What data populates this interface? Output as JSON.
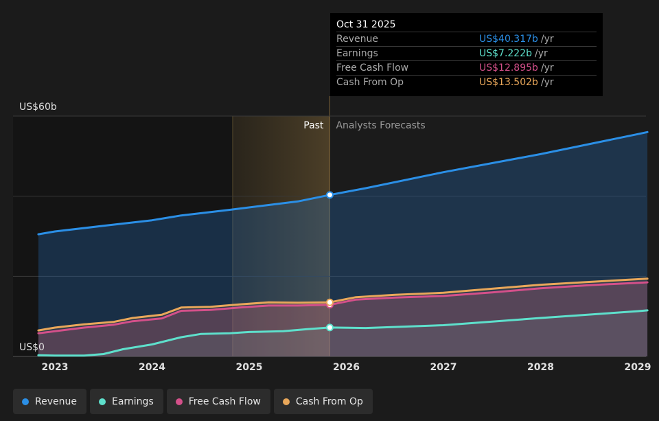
{
  "chart_data": {
    "type": "area",
    "y_top_label": "US$60b",
    "y_bottom_label": "US$0",
    "ylim": [
      0,
      60
    ],
    "x_ticks": [
      "2023",
      "2024",
      "2025",
      "2026",
      "2027",
      "2028",
      "2029"
    ],
    "past_label": "Past",
    "forecast_label": "Analysts Forecasts",
    "divider_date": 2025.83,
    "series": [
      {
        "name": "Revenue",
        "color": "#2b8fe6",
        "points": [
          [
            2022.83,
            30.5
          ],
          [
            2023.0,
            31.2
          ],
          [
            2023.5,
            32.6
          ],
          [
            2024.0,
            34.0
          ],
          [
            2024.3,
            35.2
          ],
          [
            2024.8,
            36.6
          ],
          [
            2025.2,
            37.8
          ],
          [
            2025.5,
            38.7
          ],
          [
            2025.83,
            40.317
          ],
          [
            2026.2,
            42.0
          ],
          [
            2027.0,
            46.0
          ],
          [
            2028.0,
            50.5
          ],
          [
            2029.0,
            55.5
          ],
          [
            2029.1,
            56.0
          ]
        ]
      },
      {
        "name": "Earnings",
        "color": "#5ee0cc",
        "points": [
          [
            2022.83,
            0.3
          ],
          [
            2023.0,
            0.2
          ],
          [
            2023.3,
            0.2
          ],
          [
            2023.5,
            0.6
          ],
          [
            2023.7,
            1.8
          ],
          [
            2024.0,
            3.0
          ],
          [
            2024.3,
            4.8
          ],
          [
            2024.5,
            5.6
          ],
          [
            2024.8,
            5.8
          ],
          [
            2025.0,
            6.1
          ],
          [
            2025.35,
            6.3
          ],
          [
            2025.6,
            6.8
          ],
          [
            2025.83,
            7.222
          ],
          [
            2026.2,
            7.1
          ],
          [
            2027.0,
            7.8
          ],
          [
            2028.0,
            9.6
          ],
          [
            2029.0,
            11.3
          ],
          [
            2029.1,
            11.5
          ]
        ]
      },
      {
        "name": "Free Cash Flow",
        "color": "#d4508a",
        "points": [
          [
            2022.83,
            5.8
          ],
          [
            2023.0,
            6.3
          ],
          [
            2023.3,
            7.2
          ],
          [
            2023.6,
            7.9
          ],
          [
            2023.8,
            8.8
          ],
          [
            2024.1,
            9.5
          ],
          [
            2024.3,
            11.4
          ],
          [
            2024.6,
            11.6
          ],
          [
            2024.9,
            12.2
          ],
          [
            2025.2,
            12.7
          ],
          [
            2025.5,
            12.7
          ],
          [
            2025.83,
            12.895
          ],
          [
            2026.1,
            14.2
          ],
          [
            2026.5,
            14.7
          ],
          [
            2027.0,
            15.1
          ],
          [
            2027.5,
            16.0
          ],
          [
            2028.0,
            17.0
          ],
          [
            2028.5,
            17.8
          ],
          [
            2029.1,
            18.5
          ]
        ]
      },
      {
        "name": "Cash From Op",
        "color": "#e9a75a",
        "points": [
          [
            2022.83,
            6.5
          ],
          [
            2023.0,
            7.2
          ],
          [
            2023.3,
            8.0
          ],
          [
            2023.6,
            8.6
          ],
          [
            2023.8,
            9.6
          ],
          [
            2024.1,
            10.4
          ],
          [
            2024.3,
            12.2
          ],
          [
            2024.6,
            12.4
          ],
          [
            2024.9,
            13.0
          ],
          [
            2025.2,
            13.5
          ],
          [
            2025.5,
            13.4
          ],
          [
            2025.83,
            13.502
          ],
          [
            2026.1,
            14.8
          ],
          [
            2026.5,
            15.4
          ],
          [
            2027.0,
            15.9
          ],
          [
            2027.5,
            16.9
          ],
          [
            2028.0,
            17.9
          ],
          [
            2028.5,
            18.6
          ],
          [
            2029.1,
            19.4
          ]
        ]
      }
    ]
  },
  "tooltip": {
    "date": "Oct 31 2025",
    "unit": "/yr",
    "rows": [
      {
        "name": "Revenue",
        "value": "US$40.317b",
        "color": "#2b8fe6"
      },
      {
        "name": "Earnings",
        "value": "US$7.222b",
        "color": "#5ee0cc"
      },
      {
        "name": "Free Cash Flow",
        "value": "US$12.895b",
        "color": "#d4508a"
      },
      {
        "name": "Cash From Op",
        "value": "US$13.502b",
        "color": "#e9a75a"
      }
    ]
  },
  "legend": [
    {
      "label": "Revenue",
      "color": "#2b8fe6"
    },
    {
      "label": "Earnings",
      "color": "#5ee0cc"
    },
    {
      "label": "Free Cash Flow",
      "color": "#d4508a"
    },
    {
      "label": "Cash From Op",
      "color": "#e9a75a"
    }
  ]
}
